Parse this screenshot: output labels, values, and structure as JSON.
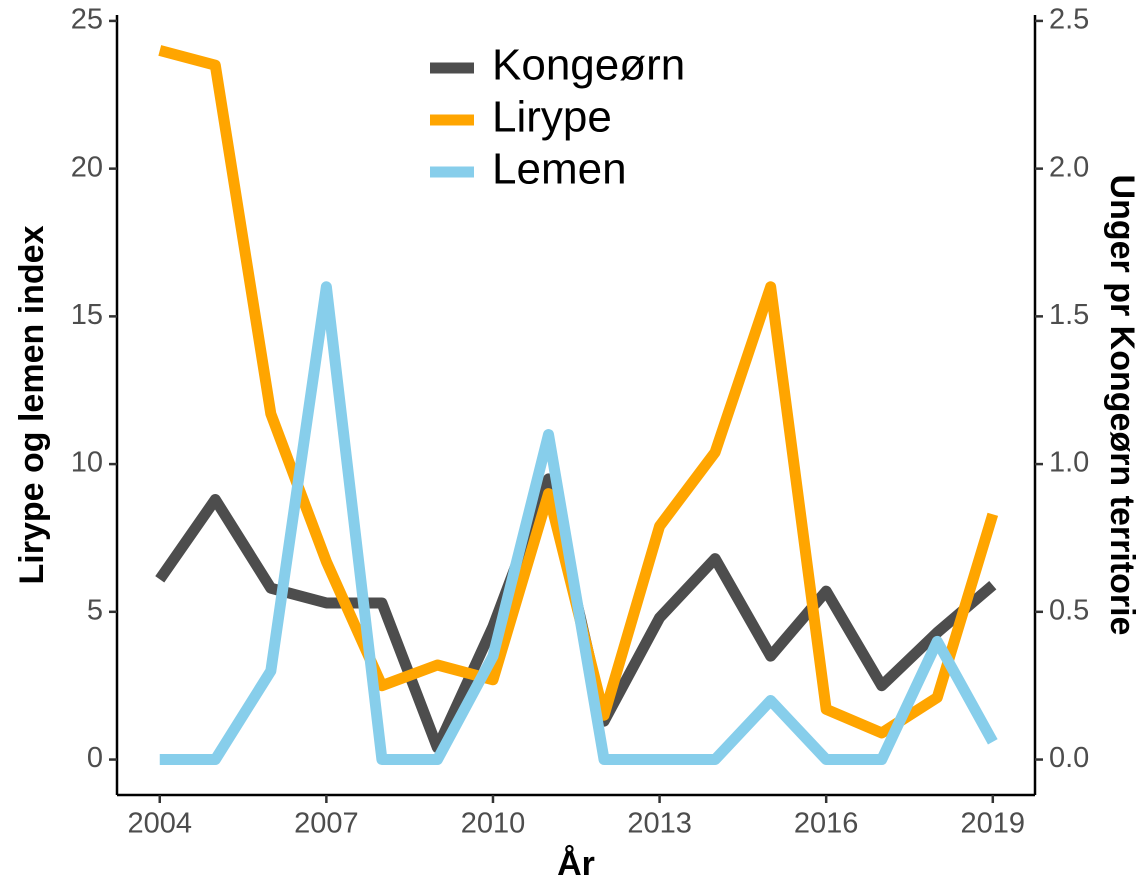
{
  "chart_data": {
    "type": "line",
    "x_label": "År",
    "y_label": "Lirype og lemen index",
    "y2_label": "Unger pr Kongeørn territorie",
    "x": [
      2004,
      2005,
      2006,
      2007,
      2008,
      2009,
      2010,
      2011,
      2012,
      2013,
      2014,
      2015,
      2016,
      2017,
      2018,
      2019
    ],
    "series": [
      {
        "name": "Kongeørn",
        "color": "#4d4d4d",
        "axis": "y2",
        "values": [
          0.61,
          0.88,
          0.58,
          0.53,
          0.53,
          0.04,
          0.45,
          0.95,
          0.13,
          0.48,
          0.68,
          0.35,
          0.57,
          0.25,
          0.43,
          0.59
        ]
      },
      {
        "name": "Lirype",
        "color": "#ffa500",
        "values": [
          24,
          23.5,
          11.7,
          6.7,
          2.5,
          3.2,
          2.7,
          9.0,
          1.5,
          7.9,
          10.4,
          16,
          1.7,
          0.9,
          2.1,
          8.3
        ]
      },
      {
        "name": "Lemen",
        "color": "#87ceeb",
        "values": [
          0,
          0,
          3,
          16,
          0,
          0,
          3.5,
          11,
          0,
          0,
          0,
          2,
          0,
          0,
          4,
          0.6
        ]
      }
    ],
    "xlim": [
      2003.23,
      2019.76
    ],
    "xticks": [
      2004,
      2007,
      2010,
      2013,
      2016,
      2019
    ],
    "ylim": [
      -1.2,
      25.2
    ],
    "yticks": [
      0,
      5,
      10,
      15,
      20,
      25
    ],
    "y2lim": [
      -0.12,
      2.52
    ],
    "y2ticks": [
      {
        "value": 0,
        "label": "0.0"
      },
      {
        "value": 0.5,
        "label": "0.5"
      },
      {
        "value": 1,
        "label": "1.0"
      },
      {
        "value": 1.5,
        "label": "1.5"
      },
      {
        "value": 2,
        "label": "2.0"
      },
      {
        "value": 2.5,
        "label": "2.5"
      }
    ],
    "grid": false,
    "legend": "top"
  }
}
